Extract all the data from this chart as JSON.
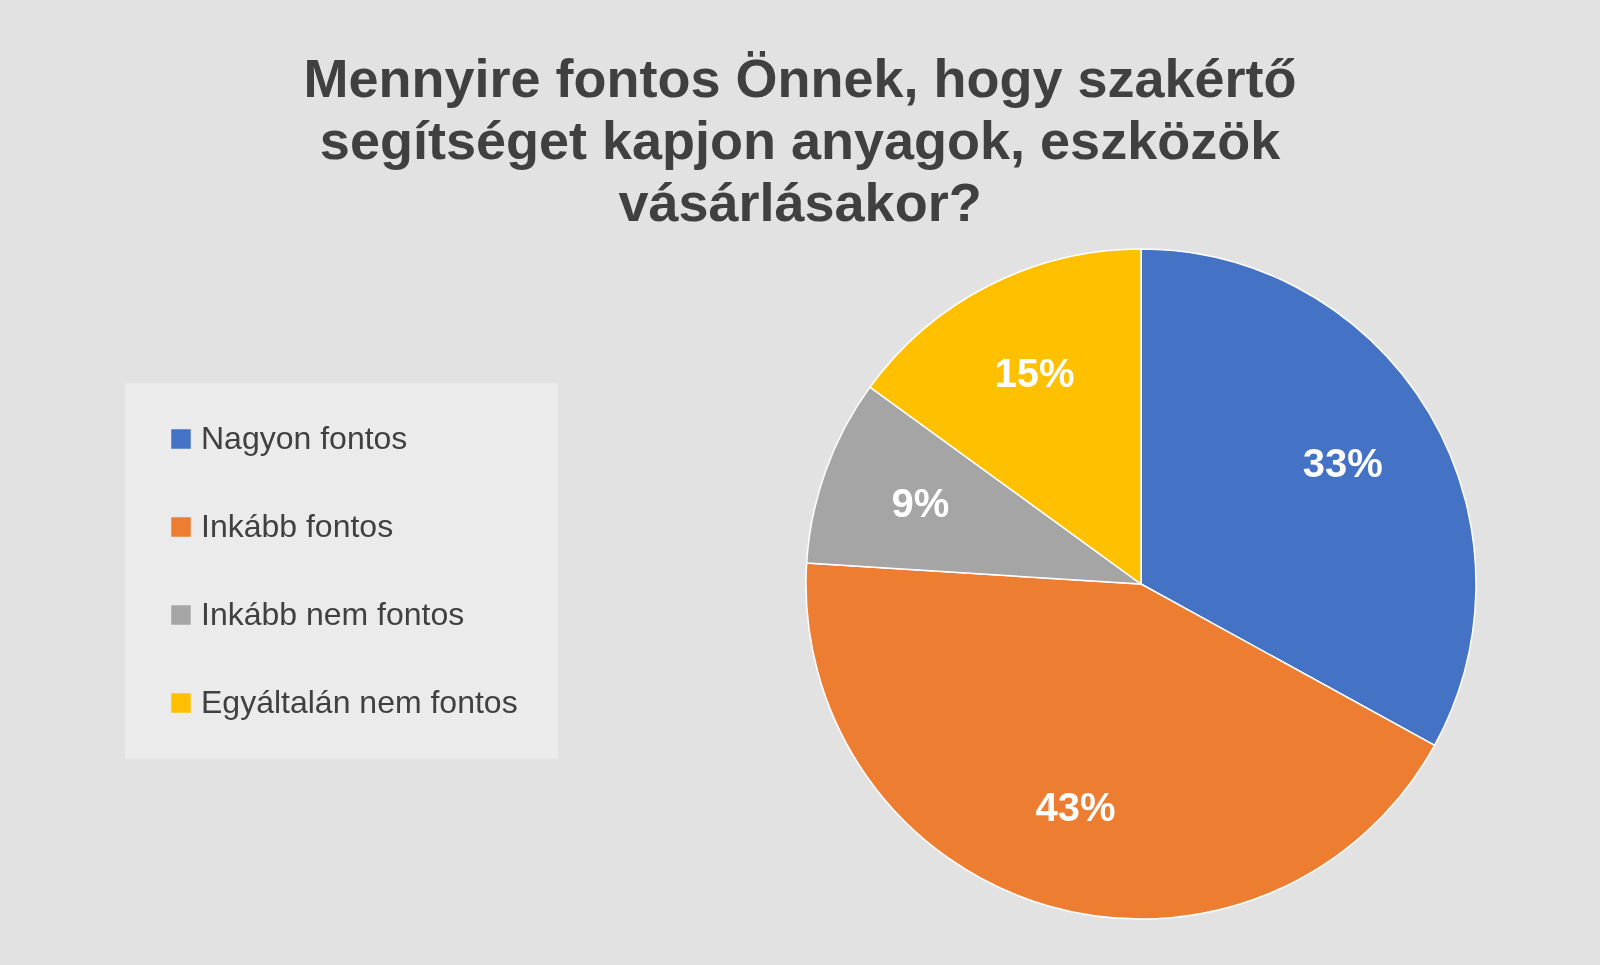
{
  "chart_data": {
    "type": "pie",
    "title": "Mennyire fontos Önnek, hogy szakértő segítséget kapjon anyagok, eszközök vásárlásakor?",
    "categories": [
      "Nagyon fontos",
      "Inkább fontos",
      "Inkább nem fontos",
      "Egyáltalán nem fontos"
    ],
    "values": [
      33,
      43,
      9,
      15
    ],
    "colors": [
      "#4472c4",
      "#ed7d31",
      "#a5a5a5",
      "#ffc000"
    ],
    "value_labels": [
      "33%",
      "43%",
      "9%",
      "15%"
    ],
    "legend": "left"
  }
}
